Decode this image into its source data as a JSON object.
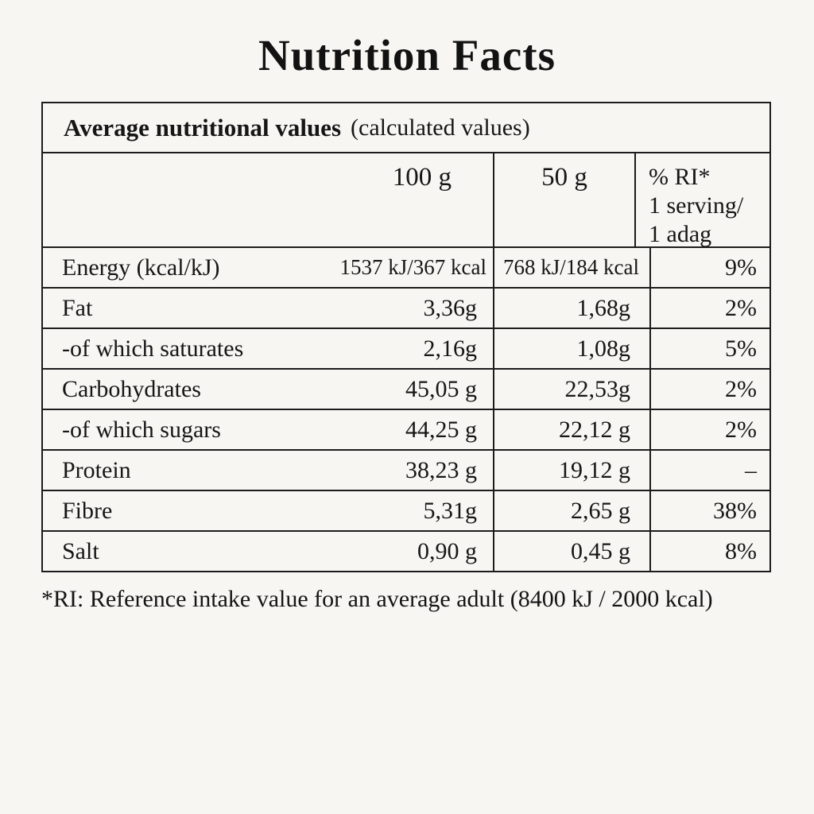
{
  "title": "Nutrition Facts",
  "colors": {
    "background": "#f7f6f3",
    "text": "#161616",
    "border": "#1c1c1c"
  },
  "table": {
    "caption": {
      "bold": "Average nutritional values",
      "normal": "(calculated values)"
    },
    "columns": {
      "per100g": "100 g",
      "per50g": "50 g",
      "ri_line1": "% RI*",
      "ri_line2": "1 serving/",
      "ri_line3": "1 adag"
    },
    "rows": [
      {
        "label": "Energy (kcal/kJ)",
        "per100g": "1537 kJ/367 kcal",
        "per50g": "768 kJ/184 kcal",
        "ri": "9%"
      },
      {
        "label": "Fat",
        "per100g": "3,36g",
        "per50g": "1,68g",
        "ri": "2%"
      },
      {
        "label": "-of which saturates",
        "per100g": "2,16g",
        "per50g": "1,08g",
        "ri": "5%"
      },
      {
        "label": "Carbohydrates",
        "per100g": "45,05 g",
        "per50g": "22,53g",
        "ri": "2%"
      },
      {
        "label": "-of which sugars",
        "per100g": "44,25 g",
        "per50g": "22,12 g",
        "ri": "2%"
      },
      {
        "label": "Protein",
        "per100g": "38,23 g",
        "per50g": "19,12 g",
        "ri": "–"
      },
      {
        "label": "Fibre",
        "per100g": "5,31g",
        "per50g": "2,65 g",
        "ri": "38%"
      },
      {
        "label": "Salt",
        "per100g": "0,90 g",
        "per50g": "0,45 g",
        "ri": "8%"
      }
    ]
  },
  "footnote": "*RI: Reference intake value for an average adult (8400 kJ / 2000 kcal)"
}
